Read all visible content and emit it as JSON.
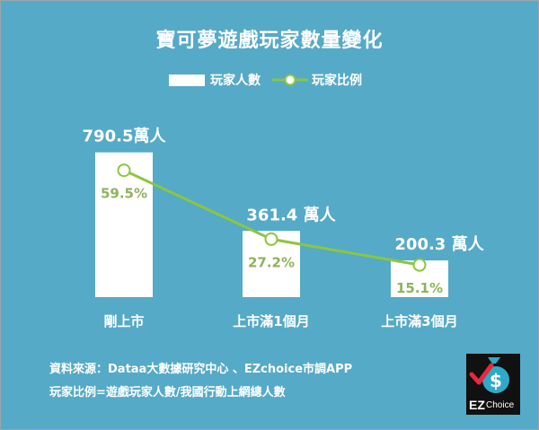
{
  "chart_data": {
    "type": "bar",
    "title": "寶可夢遊戲玩家數量變化",
    "categories": [
      "剛上市",
      "上市滿1個月",
      "上市滿3個月"
    ],
    "series": [
      {
        "name": "玩家人數",
        "type": "bar",
        "values": [
          790.5,
          361.4,
          200.3
        ],
        "labels": [
          "790.5萬人",
          "361.4 萬人",
          "200.3 萬人"
        ],
        "unit": "萬人"
      },
      {
        "name": "玩家比例",
        "type": "line",
        "values": [
          59.5,
          27.2,
          15.1
        ],
        "labels": [
          "59.5%",
          "27.2%",
          "15.1%"
        ],
        "unit": "%"
      }
    ],
    "ylim": [
      0,
      1000
    ],
    "ylim_ratio": [
      0,
      80
    ],
    "grid": false,
    "legend": "top-center"
  },
  "colors": {
    "background": "#55aac7",
    "bar": "#ffffff",
    "line": "#8cc63f",
    "percent_text": "#8eb35c",
    "text": "#ffffff"
  },
  "footnote": {
    "source": "資料來源：Dataa大數據研究中心 、EZchoice市調APP",
    "definition": "玩家比例=遊戲玩家人數/我國行動上網總人數"
  },
  "logo": {
    "icon": "money-bag-check-icon",
    "text_ez": "EZ",
    "text_choice": "Choice"
  }
}
